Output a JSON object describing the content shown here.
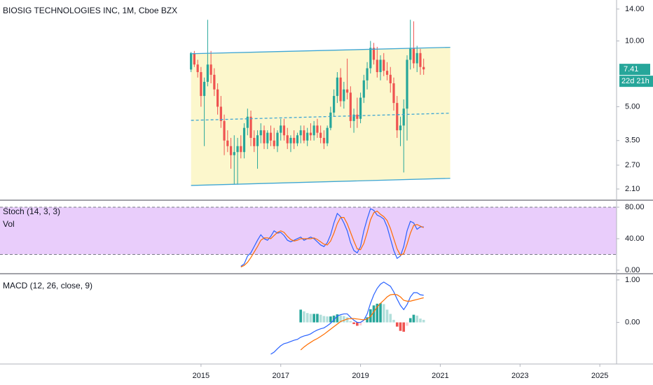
{
  "chart_data": [
    {
      "type": "candlestick",
      "title": "BIOSIG TECHNOLOGIES INC, 1M, Cboe BZX",
      "x": [
        2014.75,
        2014.833,
        2014.917,
        2015,
        2015.083,
        2015.167,
        2015.25,
        2015.333,
        2015.417,
        2015.5,
        2015.583,
        2015.667,
        2015.75,
        2015.833,
        2015.917,
        2016,
        2016.083,
        2016.167,
        2016.25,
        2016.333,
        2016.417,
        2016.5,
        2016.583,
        2016.667,
        2016.75,
        2016.833,
        2016.917,
        2017,
        2017.083,
        2017.167,
        2017.25,
        2017.333,
        2017.417,
        2017.5,
        2017.583,
        2017.667,
        2017.75,
        2017.833,
        2017.917,
        2018,
        2018.083,
        2018.167,
        2018.25,
        2018.333,
        2018.417,
        2018.5,
        2018.583,
        2018.667,
        2018.75,
        2018.833,
        2018.917,
        2019,
        2019.083,
        2019.167,
        2019.25,
        2019.333,
        2019.417,
        2019.5,
        2019.583,
        2019.667,
        2019.75,
        2019.833,
        2019.917,
        2020,
        2020.083,
        2020.167,
        2020.25,
        2020.333,
        2020.417,
        2020.5,
        2020.583
      ],
      "open": [
        7.4,
        8.8,
        7.8,
        7.2,
        5.6,
        6.5,
        7.8,
        7.0,
        6.0,
        5.0,
        4.3,
        3.5,
        3.3,
        3.0,
        3.1,
        3.3,
        3.1,
        4.0,
        4.5,
        3.6,
        3.3,
        3.7,
        3.9,
        3.4,
        3.8,
        3.5,
        3.3,
        3.8,
        4.1,
        3.7,
        3.4,
        3.6,
        3.4,
        3.7,
        3.9,
        3.5,
        3.8,
        3.7,
        4.1,
        3.8,
        3.6,
        3.4,
        4.0,
        4.7,
        5.6,
        6.8,
        5.3,
        6.0,
        5.8,
        4.3,
        4.6,
        4.4,
        5.5,
        6.6,
        7.5,
        9.3,
        8.2,
        7.2,
        8.2,
        7.3,
        7.0,
        6.4,
        5.2,
        3.9,
        4.1,
        4.9,
        8.2,
        9.3,
        7.9,
        8.8,
        7.6
      ],
      "high": [
        8.9,
        9.0,
        8.2,
        7.6,
        6.8,
        12.5,
        9.0,
        7.5,
        6.4,
        5.6,
        4.6,
        3.9,
        3.6,
        3.7,
        3.6,
        3.7,
        4.2,
        4.9,
        4.8,
        3.9,
        3.9,
        4.2,
        4.1,
        3.9,
        4.1,
        4.0,
        3.9,
        4.4,
        4.4,
        4.0,
        3.7,
        3.9,
        3.8,
        4.1,
        4.1,
        4.0,
        4.2,
        4.3,
        4.4,
        4.1,
        3.9,
        4.1,
        5.0,
        6.0,
        7.2,
        7.5,
        6.5,
        8.3,
        6.2,
        4.9,
        5.5,
        5.8,
        7.0,
        8.0,
        10.0,
        9.8,
        9.4,
        8.6,
        8.8,
        8.0,
        7.6,
        6.8,
        5.6,
        4.5,
        5.4,
        8.6,
        12.5,
        12.3,
        9.5,
        9.2,
        8.3
      ],
      "low": [
        7.2,
        7.6,
        6.8,
        5.0,
        3.3,
        6.2,
        6.4,
        5.6,
        4.6,
        4.0,
        3.0,
        3.1,
        2.6,
        2.2,
        2.2,
        2.9,
        2.9,
        3.7,
        3.3,
        3.1,
        2.6,
        3.4,
        3.2,
        3.2,
        3.3,
        3.2,
        3.1,
        3.5,
        3.5,
        3.2,
        3.1,
        3.2,
        3.3,
        3.4,
        3.4,
        3.3,
        3.5,
        3.5,
        3.6,
        3.4,
        3.2,
        3.3,
        3.9,
        4.5,
        5.2,
        5.0,
        4.9,
        5.4,
        4.0,
        3.8,
        4.0,
        4.2,
        5.2,
        6.0,
        7.1,
        7.8,
        6.8,
        6.6,
        6.9,
        6.6,
        5.8,
        4.8,
        3.6,
        3.3,
        2.5,
        3.5,
        7.4,
        7.5,
        7.2,
        7.0,
        7.0
      ],
      "close": [
        8.8,
        7.8,
        7.2,
        5.6,
        6.5,
        7.8,
        7.0,
        6.0,
        5.0,
        4.3,
        3.5,
        3.3,
        3.0,
        3.1,
        3.3,
        3.1,
        4.0,
        4.5,
        3.6,
        3.3,
        3.7,
        3.9,
        3.4,
        3.8,
        3.5,
        3.3,
        3.8,
        4.1,
        3.7,
        3.4,
        3.6,
        3.4,
        3.7,
        3.9,
        3.5,
        3.8,
        3.7,
        4.1,
        3.8,
        3.6,
        3.4,
        4.0,
        4.7,
        5.6,
        6.8,
        5.3,
        6.0,
        5.8,
        4.3,
        4.6,
        4.4,
        5.5,
        6.6,
        7.5,
        9.3,
        8.2,
        7.2,
        8.2,
        7.3,
        7.0,
        6.4,
        5.2,
        3.9,
        4.1,
        4.9,
        8.2,
        9.3,
        7.9,
        8.8,
        7.6,
        7.41
      ],
      "up_color": "#26a69a",
      "down_color": "#ef5350",
      "yscale": "log",
      "ylim": [
        1.88,
        15.4
      ],
      "yticks": [
        {
          "value": 2.1,
          "label": "2.10"
        },
        {
          "value": 2.7,
          "label": "2.70"
        },
        {
          "value": 3.5,
          "label": "3.50"
        },
        {
          "value": 5,
          "label": "5.00"
        },
        {
          "value": 10,
          "label": "10.00"
        },
        {
          "value": 14,
          "label": "14.00"
        }
      ],
      "xlim": [
        2009.96,
        2025.42
      ],
      "xticks": [
        2015,
        2017,
        2019,
        2021,
        2023,
        2025
      ],
      "last_price": 7.41,
      "countdown": "22d 21h",
      "channel": {
        "x": [
          2014.75,
          2021.25
        ],
        "upper": [
          8.74,
          9.35
        ],
        "middle": [
          4.33,
          4.67
        ],
        "lower": [
          2.18,
          2.35
        ],
        "color": "#3ea6d3",
        "fill": "#fcf7cc"
      }
    },
    {
      "type": "line",
      "title": "Stoch (14, 3, 3)",
      "subtitle": "Vol",
      "x": [
        2016,
        2016.083,
        2016.167,
        2016.25,
        2016.333,
        2016.417,
        2016.5,
        2016.583,
        2016.667,
        2016.75,
        2016.833,
        2016.917,
        2017,
        2017.083,
        2017.167,
        2017.25,
        2017.333,
        2017.417,
        2017.5,
        2017.583,
        2017.667,
        2017.75,
        2017.833,
        2017.917,
        2018,
        2018.083,
        2018.167,
        2018.25,
        2018.333,
        2018.417,
        2018.5,
        2018.583,
        2018.667,
        2018.75,
        2018.833,
        2018.917,
        2019,
        2019.083,
        2019.167,
        2019.25,
        2019.333,
        2019.417,
        2019.5,
        2019.583,
        2019.667,
        2019.75,
        2019.833,
        2019.917,
        2020,
        2020.083,
        2020.167,
        2020.25,
        2020.333,
        2020.417,
        2020.5,
        2020.583
      ],
      "series": [
        {
          "color": "#2962ff",
          "values": [
            5,
            8,
            18,
            22,
            30,
            38,
            45,
            40,
            38,
            43,
            50,
            47,
            48,
            44,
            38,
            36,
            38,
            40,
            42,
            38,
            40,
            42,
            40,
            36,
            32,
            30,
            35,
            45,
            60,
            72,
            68,
            60,
            50,
            35,
            25,
            22,
            30,
            50,
            65,
            78,
            76,
            70,
            68,
            65,
            55,
            40,
            25,
            15,
            18,
            30,
            50,
            62,
            60,
            52,
            55,
            55
          ]
        },
        {
          "color": "#ff6d00",
          "values": [
            4,
            6,
            10,
            16,
            23,
            30,
            38,
            41,
            41,
            40,
            44,
            48,
            50,
            48,
            43,
            39,
            37,
            38,
            40,
            40,
            40,
            40,
            41,
            39,
            36,
            33,
            32,
            37,
            47,
            59,
            67,
            67,
            59,
            48,
            37,
            27,
            26,
            34,
            48,
            64,
            73,
            75,
            71,
            68,
            63,
            53,
            40,
            27,
            19,
            21,
            33,
            47,
            57,
            58,
            56,
            54
          ]
        }
      ],
      "ylim": [
        -3.6,
        88
      ],
      "yticks": [
        {
          "value": 0,
          "label": "0.00"
        },
        {
          "value": 40,
          "label": "40.00"
        },
        {
          "value": 80,
          "label": "80.00"
        }
      ],
      "bands": [
        20,
        80
      ],
      "band_fill": "#e9cdfb"
    },
    {
      "type": "macd",
      "title": "MACD (12, 26, close, 9)",
      "x": [
        2016.75,
        2016.833,
        2016.917,
        2017,
        2017.083,
        2017.167,
        2017.25,
        2017.333,
        2017.417,
        2017.5,
        2017.583,
        2017.667,
        2017.75,
        2017.833,
        2017.917,
        2018,
        2018.083,
        2018.167,
        2018.25,
        2018.333,
        2018.417,
        2018.5,
        2018.583,
        2018.667,
        2018.75,
        2018.833,
        2018.917,
        2019,
        2019.083,
        2019.167,
        2019.25,
        2019.333,
        2019.417,
        2019.5,
        2019.583,
        2019.667,
        2019.75,
        2019.833,
        2019.917,
        2020,
        2020.083,
        2020.167,
        2020.25,
        2020.333,
        2020.417,
        2020.5,
        2020.583
      ],
      "series": [
        {
          "color": "#2962ff",
          "values": [
            -0.75,
            -0.7,
            -0.62,
            -0.55,
            -0.5,
            -0.48,
            -0.45,
            -0.42,
            -0.4,
            -0.35,
            -0.32,
            -0.3,
            -0.27,
            -0.22,
            -0.18,
            -0.15,
            -0.13,
            -0.08,
            -0.02,
            0.06,
            0.15,
            0.18,
            0.2,
            0.2,
            0.12,
            0.05,
            0.0,
            0.0,
            0.05,
            0.2,
            0.45,
            0.65,
            0.8,
            0.9,
            0.95,
            0.9,
            0.85,
            0.72,
            0.55,
            0.4,
            0.3,
            0.42,
            0.6,
            0.7,
            0.7,
            0.65,
            0.64
          ]
        },
        {
          "color": "#ff6d00",
          "values": [
            null,
            null,
            null,
            null,
            null,
            null,
            null,
            null,
            null,
            -0.65,
            -0.58,
            -0.52,
            -0.47,
            -0.42,
            -0.38,
            -0.33,
            -0.28,
            -0.22,
            -0.16,
            -0.1,
            -0.04,
            0.02,
            0.05,
            0.08,
            0.09,
            0.09,
            0.08,
            0.07,
            0.06,
            0.08,
            0.14,
            0.25,
            0.36,
            0.45,
            0.52,
            0.6,
            0.65,
            0.66,
            0.65,
            0.6,
            0.52,
            0.5,
            0.5,
            0.52,
            0.54,
            0.56,
            0.58
          ]
        }
      ],
      "histogram": {
        "values": [
          null,
          null,
          null,
          null,
          null,
          null,
          null,
          null,
          null,
          0.3,
          0.26,
          0.22,
          0.2,
          0.2,
          0.2,
          0.18,
          0.15,
          0.14,
          0.14,
          0.16,
          0.19,
          0.16,
          0.15,
          0.12,
          0.03,
          -0.04,
          -0.08,
          -0.07,
          -0.01,
          0.12,
          0.31,
          0.4,
          0.44,
          0.45,
          0.43,
          0.3,
          0.2,
          0.06,
          -0.1,
          -0.2,
          -0.22,
          -0.08,
          0.1,
          0.18,
          0.16,
          0.09,
          0.06
        ],
        "rising_positive": "#26a69a",
        "falling_positive": "#b2dfdb",
        "falling_negative": "#ef5350",
        "rising_negative": "#ffcdd2"
      },
      "ylim": [
        -0.98,
        1.13
      ],
      "yticks": [
        {
          "value": 0,
          "label": "0.00"
        },
        {
          "value": 1,
          "label": "1.00"
        }
      ]
    }
  ]
}
